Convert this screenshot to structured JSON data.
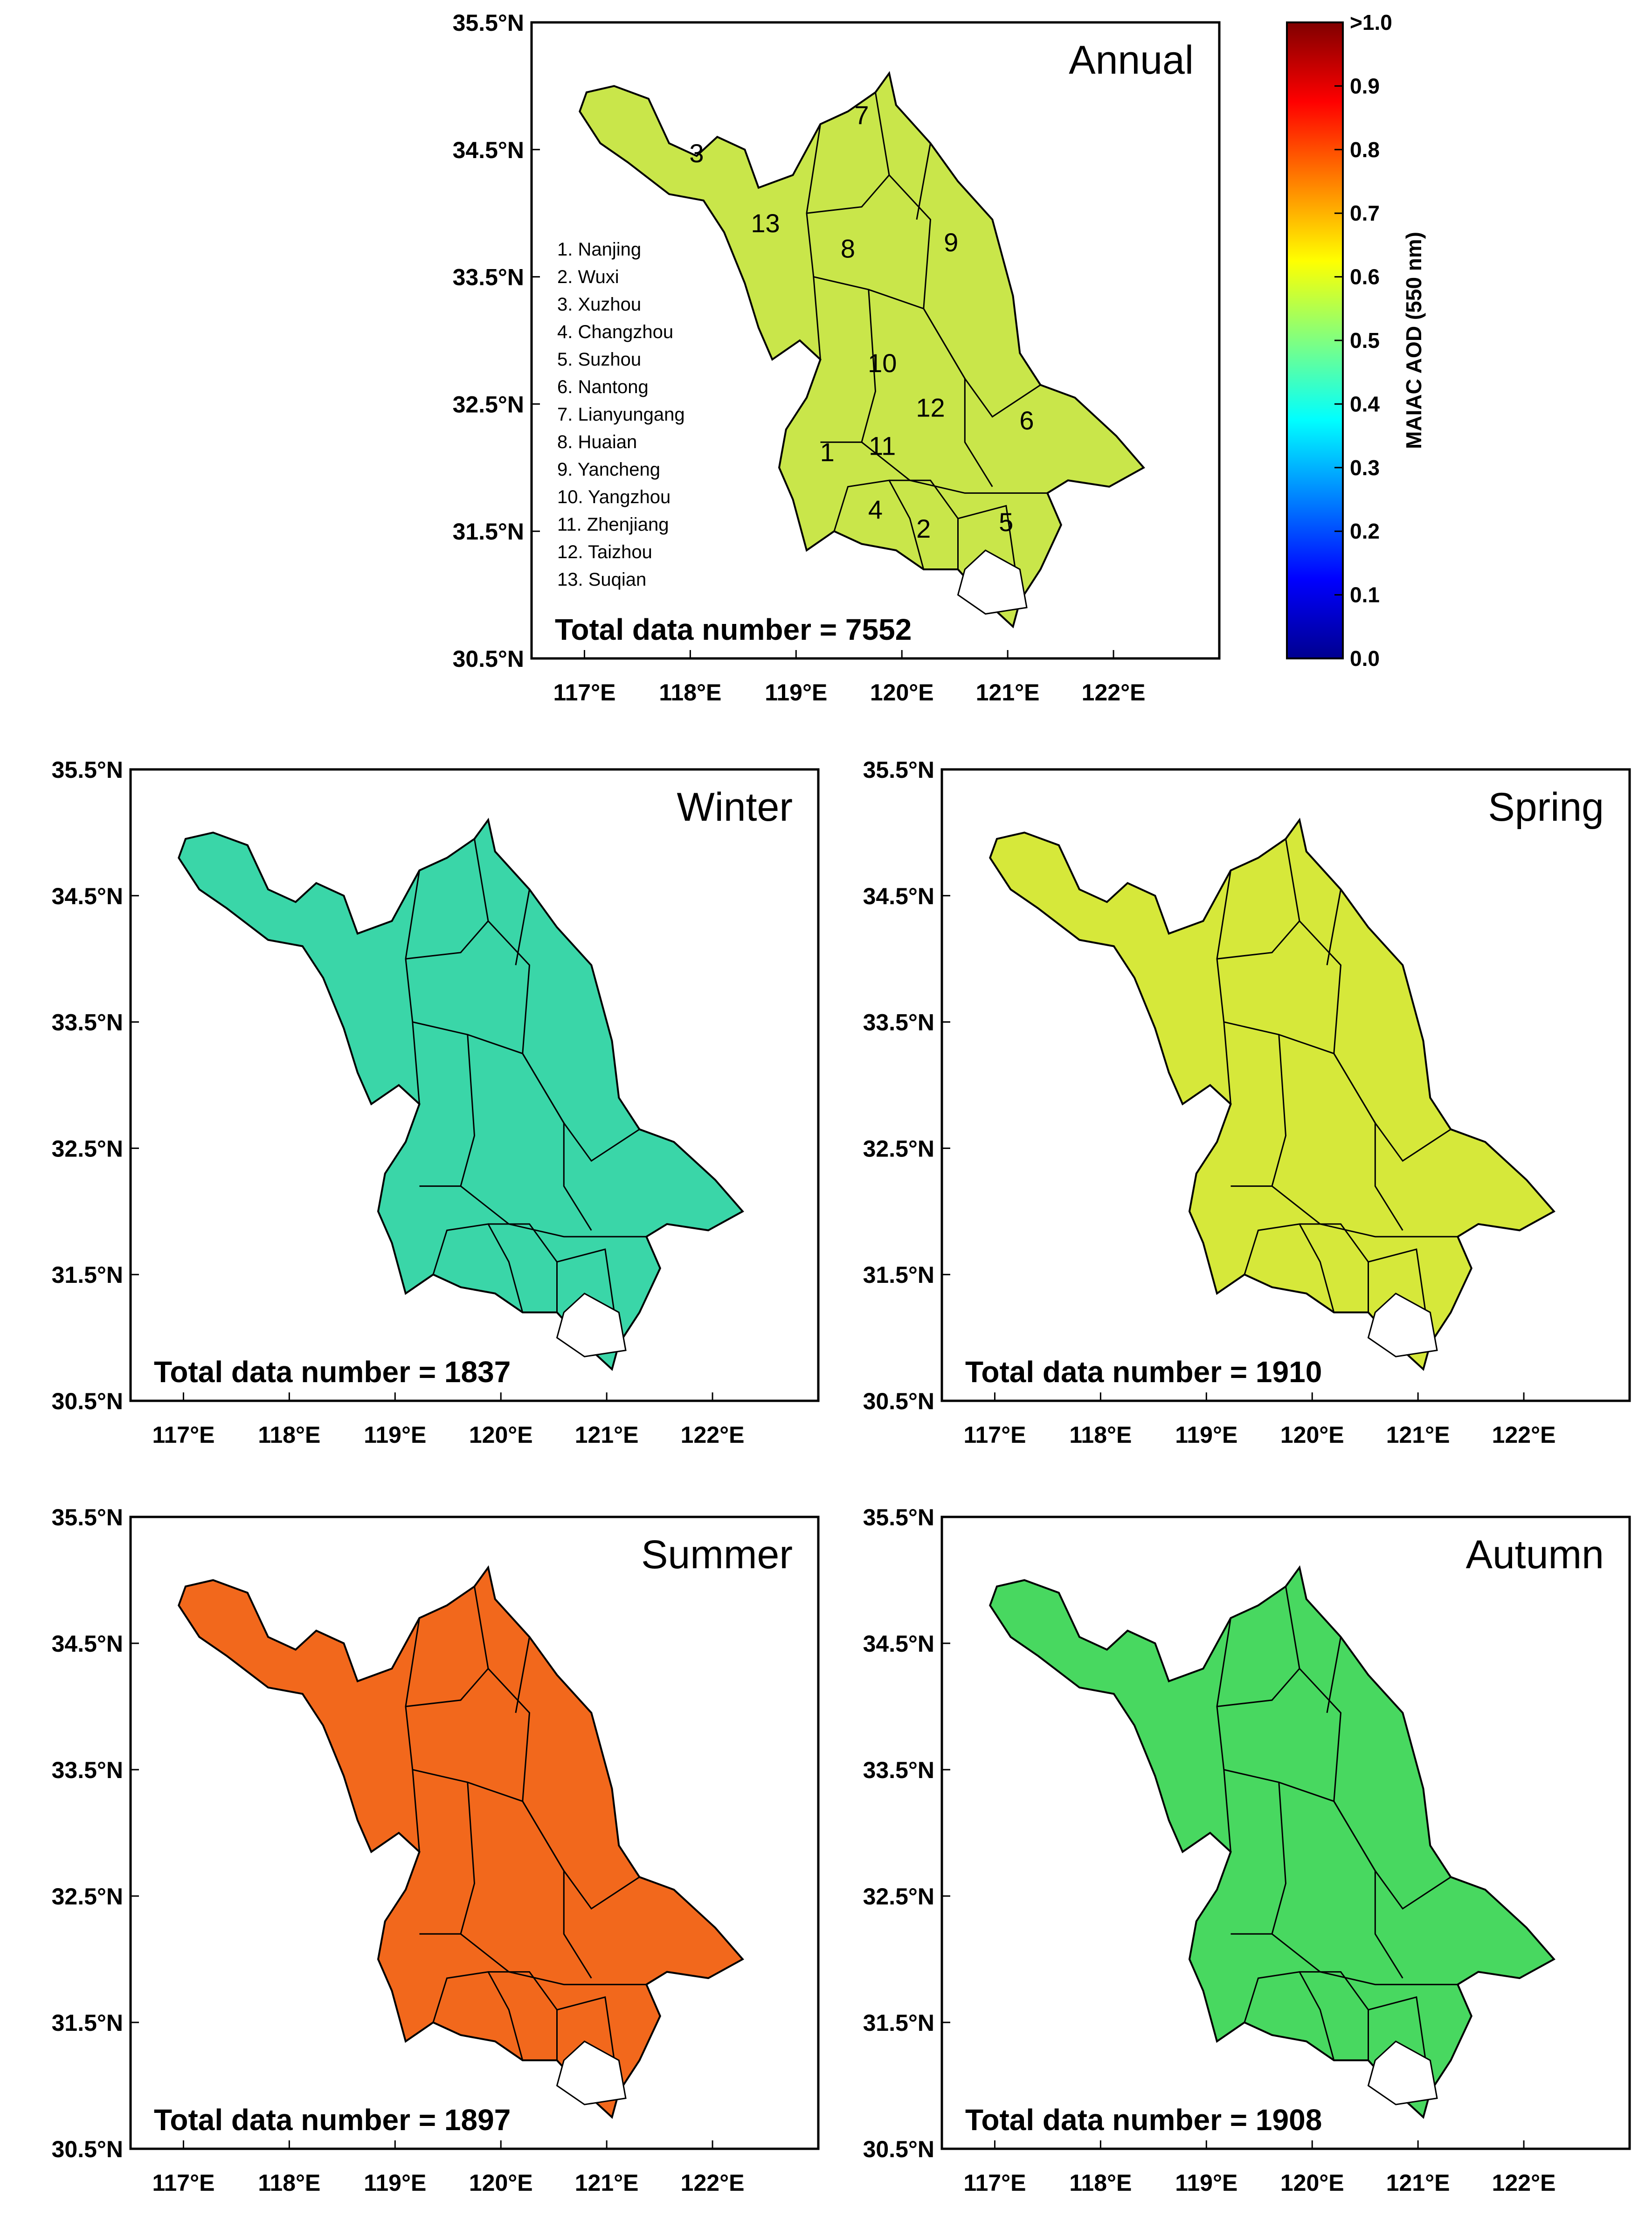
{
  "colorbar": {
    "title": "MAIAC AOD (550 nm)",
    "tick_labels": [
      ">1.0",
      "0.9",
      "0.8",
      "0.7",
      "0.6",
      "0.5",
      "0.4",
      "0.3",
      "0.2",
      "0.1",
      "0.0"
    ],
    "stops": [
      "#00008f",
      "#0000ff",
      "#0080ff",
      "#00ffff",
      "#80ff80",
      "#ffff00",
      "#ff8000",
      "#ff0000",
      "#800000"
    ]
  },
  "axes": {
    "lat_ticks": [
      "35.5°N",
      "34.5°N",
      "33.5°N",
      "32.5°N",
      "31.5°N",
      "30.5°N"
    ],
    "lon_ticks": [
      "117°E",
      "118°E",
      "119°E",
      "120°E",
      "121°E",
      "122°E"
    ]
  },
  "panels": [
    {
      "id": "annual",
      "title": "Annual",
      "count_text": "Total data number = 7552",
      "fill": "#c9e64a",
      "show_labels": true
    },
    {
      "id": "winter",
      "title": "Winter",
      "count_text": "Total data number = 1837",
      "fill": "#3ad6a8",
      "show_labels": false
    },
    {
      "id": "spring",
      "title": "Spring",
      "count_text": "Total data number = 1910",
      "fill": "#d6e83a",
      "show_labels": false
    },
    {
      "id": "summer",
      "title": "Summer",
      "count_text": "Total data number = 1897",
      "fill": "#f2681c",
      "show_labels": false
    },
    {
      "id": "autumn",
      "title": "Autumn",
      "count_text": "Total data number = 1908",
      "fill": "#48d860",
      "show_labels": false
    }
  ],
  "city_numbers": [
    "1",
    "2",
    "3",
    "4",
    "5",
    "6",
    "7",
    "8",
    "9",
    "10",
    "11",
    "12",
    "13"
  ],
  "city_legend": [
    "1. Nanjing",
    "2. Wuxi",
    "3. Xuzhou",
    "4. Changzhou",
    "5. Suzhou",
    "6. Nantong",
    "7. Lianyungang",
    "8. Huaian",
    "9. Yancheng",
    "10. Yangzhou",
    "11. Zhenjiang",
    "12. Taizhou",
    "13. Suqian"
  ]
}
